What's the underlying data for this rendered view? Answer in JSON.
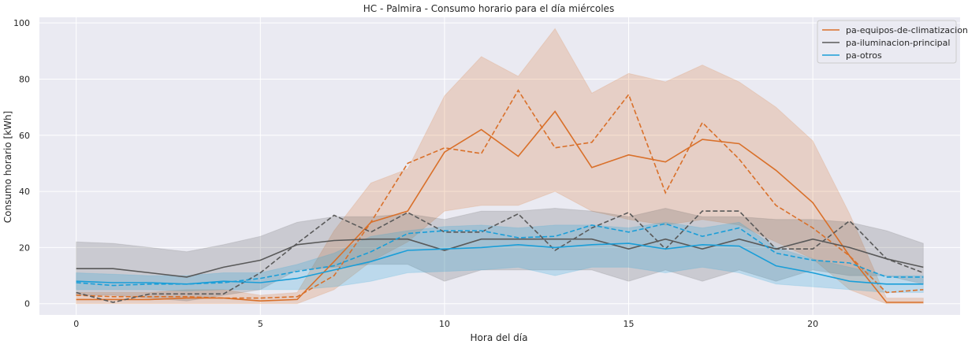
{
  "chart_data": {
    "type": "line",
    "title": "HC - Palmira - Consumo horario para el día miércoles",
    "xlabel": "Hora del día",
    "ylabel": "Consumo horario [kWh]",
    "xlim": [
      -1,
      24
    ],
    "ylim": [
      -4,
      102
    ],
    "xticks": [
      0,
      5,
      10,
      15,
      20
    ],
    "yticks": [
      0,
      20,
      40,
      60,
      80,
      100
    ],
    "grid": true,
    "legend_position": "top-right",
    "x": [
      0,
      1,
      2,
      3,
      4,
      5,
      6,
      7,
      8,
      9,
      10,
      11,
      12,
      13,
      14,
      15,
      16,
      17,
      18,
      19,
      20,
      21,
      22,
      23
    ],
    "series": [
      {
        "name": "pa-equipos-de-climatizacion",
        "color": "#d9702a",
        "mean": [
          1.5,
          1.5,
          1.5,
          2,
          2,
          1,
          1.5,
          15,
          29,
          33,
          54,
          62,
          52.5,
          68.5,
          48.5,
          53,
          50.5,
          58.5,
          57,
          47.5,
          36,
          17,
          0.5,
          0.5
        ],
        "lower": [
          0,
          0,
          0,
          0,
          0,
          0,
          0,
          5,
          15,
          22,
          33,
          35,
          35,
          40,
          33,
          30,
          28,
          30,
          28,
          22,
          16,
          5,
          0,
          0
        ],
        "upper": [
          4,
          4,
          4,
          5,
          5,
          3,
          4,
          26,
          43,
          48,
          74,
          88,
          81,
          98,
          75,
          82,
          79,
          85,
          79,
          70,
          58,
          32,
          2,
          2
        ],
        "dashed": [
          3,
          2.5,
          2.5,
          2.5,
          2,
          2,
          2.5,
          10,
          29,
          50,
          55.5,
          53.5,
          76,
          55.5,
          57.5,
          74.5,
          39.5,
          64.5,
          51.5,
          35,
          27,
          17,
          4,
          5
        ]
      },
      {
        "name": "pa-iluminacion-principal",
        "color": "#595959",
        "mean": [
          12.5,
          12.5,
          11,
          9.5,
          13,
          15.5,
          21,
          22.5,
          23,
          23,
          19,
          23,
          23,
          23,
          23,
          19.5,
          23,
          19.5,
          23,
          19.5,
          23,
          20,
          16,
          13
        ],
        "lower": [
          3,
          3,
          2,
          1,
          3,
          5,
          12,
          13,
          14,
          14,
          8,
          12,
          12,
          12,
          12,
          8,
          12,
          8,
          12,
          8,
          12,
          10,
          10,
          7
        ],
        "upper": [
          22,
          21.5,
          20,
          18.5,
          21,
          24,
          29,
          31,
          31,
          32,
          30,
          33,
          33,
          34,
          33,
          31,
          34,
          31,
          31,
          30,
          30,
          29,
          26,
          21.5
        ],
        "dashed": [
          4,
          0.5,
          3.5,
          3.5,
          3.5,
          11,
          21.5,
          31.5,
          25.5,
          32.5,
          25.5,
          25.5,
          32,
          19,
          27,
          32.5,
          19.5,
          33,
          33,
          19.5,
          19.5,
          29.5,
          16,
          11
        ]
      },
      {
        "name": "pa-otros",
        "color": "#1a9ed8",
        "mean": [
          8,
          7.5,
          7.5,
          7,
          8,
          7.5,
          9,
          12,
          15,
          19,
          19.5,
          20,
          21,
          20,
          21,
          21.5,
          19.5,
          21,
          20.5,
          13.5,
          11,
          8,
          7,
          7
        ],
        "lower": [
          5,
          5,
          5,
          4.5,
          5,
          5,
          5,
          6,
          8,
          11,
          11.5,
          12,
          13,
          10,
          13,
          13,
          11,
          13,
          11,
          7,
          6,
          5,
          4,
          4
        ],
        "upper": [
          11,
          10.5,
          10,
          10,
          11,
          11,
          14,
          18,
          24,
          26,
          27.5,
          28,
          27,
          28,
          28,
          27,
          29,
          27,
          29,
          20,
          16,
          13,
          10,
          10
        ],
        "dashed": [
          7.5,
          6.5,
          7,
          7,
          7.5,
          9,
          11.5,
          13.5,
          18.5,
          25,
          26,
          26,
          23.5,
          24,
          28,
          25.5,
          28.5,
          24,
          27,
          18,
          15.5,
          14.5,
          9.5,
          9.5
        ]
      }
    ]
  }
}
